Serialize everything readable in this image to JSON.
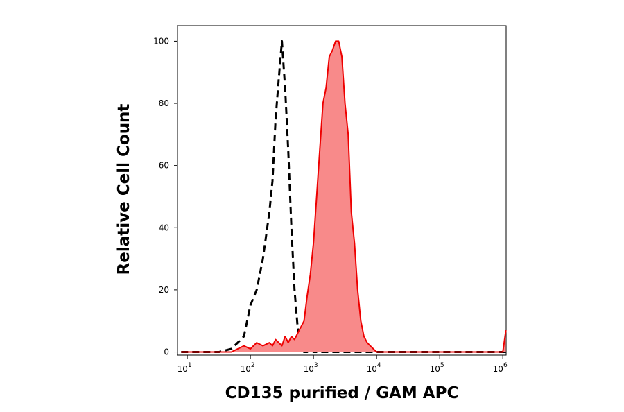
{
  "chart_data": {
    "type": "histogram-overlay",
    "xlabel": "CD135 purified / GAM APC",
    "ylabel": "Relative Cell Count",
    "xscale": "log",
    "xlim": [
      7,
      1130000
    ],
    "ylim": [
      -1,
      105
    ],
    "xticks": [
      {
        "value": 10,
        "label": "10",
        "sup": "1"
      },
      {
        "value": 100,
        "label": "10",
        "sup": "2"
      },
      {
        "value": 1000,
        "label": "10",
        "sup": "3"
      },
      {
        "value": 10000,
        "label": "10",
        "sup": "4"
      },
      {
        "value": 100000,
        "label": "10",
        "sup": "5"
      },
      {
        "value": 1000000,
        "label": "10",
        "sup": "6"
      }
    ],
    "yticks": [
      0,
      20,
      40,
      60,
      80,
      100
    ],
    "x": [
      8,
      16,
      32,
      50,
      63,
      79,
      100,
      126,
      158,
      200,
      224,
      251,
      282,
      316,
      355,
      398,
      447,
      501,
      562,
      631,
      708,
      794,
      891,
      1000,
      1122,
      1259,
      1413,
      1585,
      1778,
      1995,
      2239,
      2512,
      2818,
      3162,
      3548,
      3981,
      4467,
      5012,
      5623,
      6310,
      7079,
      7943,
      10000,
      31623,
      100000,
      316228,
      794328,
      1000000,
      1122018
    ],
    "series": [
      {
        "color": "#000000",
        "style": "dashed",
        "filled": false,
        "values": [
          0,
          0,
          0,
          1,
          3,
          5,
          15,
          20,
          30,
          45,
          55,
          75,
          88,
          100,
          85,
          65,
          40,
          20,
          8,
          2,
          0,
          0,
          1,
          0,
          0,
          0,
          0,
          0,
          0,
          0,
          0,
          0,
          0,
          0,
          0,
          0,
          0,
          0,
          0,
          0,
          0,
          0,
          0,
          0,
          0,
          0,
          0,
          0,
          0
        ]
      },
      {
        "color": "#ee0000",
        "fill_color": "#f88a8a",
        "style": "solid",
        "filled": true,
        "values": [
          0,
          0,
          0,
          0,
          1,
          2,
          1,
          3,
          2,
          3,
          2,
          4,
          3,
          2,
          5,
          3,
          5,
          4,
          6,
          8,
          10,
          18,
          25,
          35,
          50,
          65,
          80,
          85,
          95,
          97,
          100,
          100,
          95,
          80,
          70,
          45,
          35,
          20,
          10,
          5,
          3,
          2,
          0,
          0,
          0,
          0,
          0,
          0,
          7
        ]
      }
    ]
  }
}
